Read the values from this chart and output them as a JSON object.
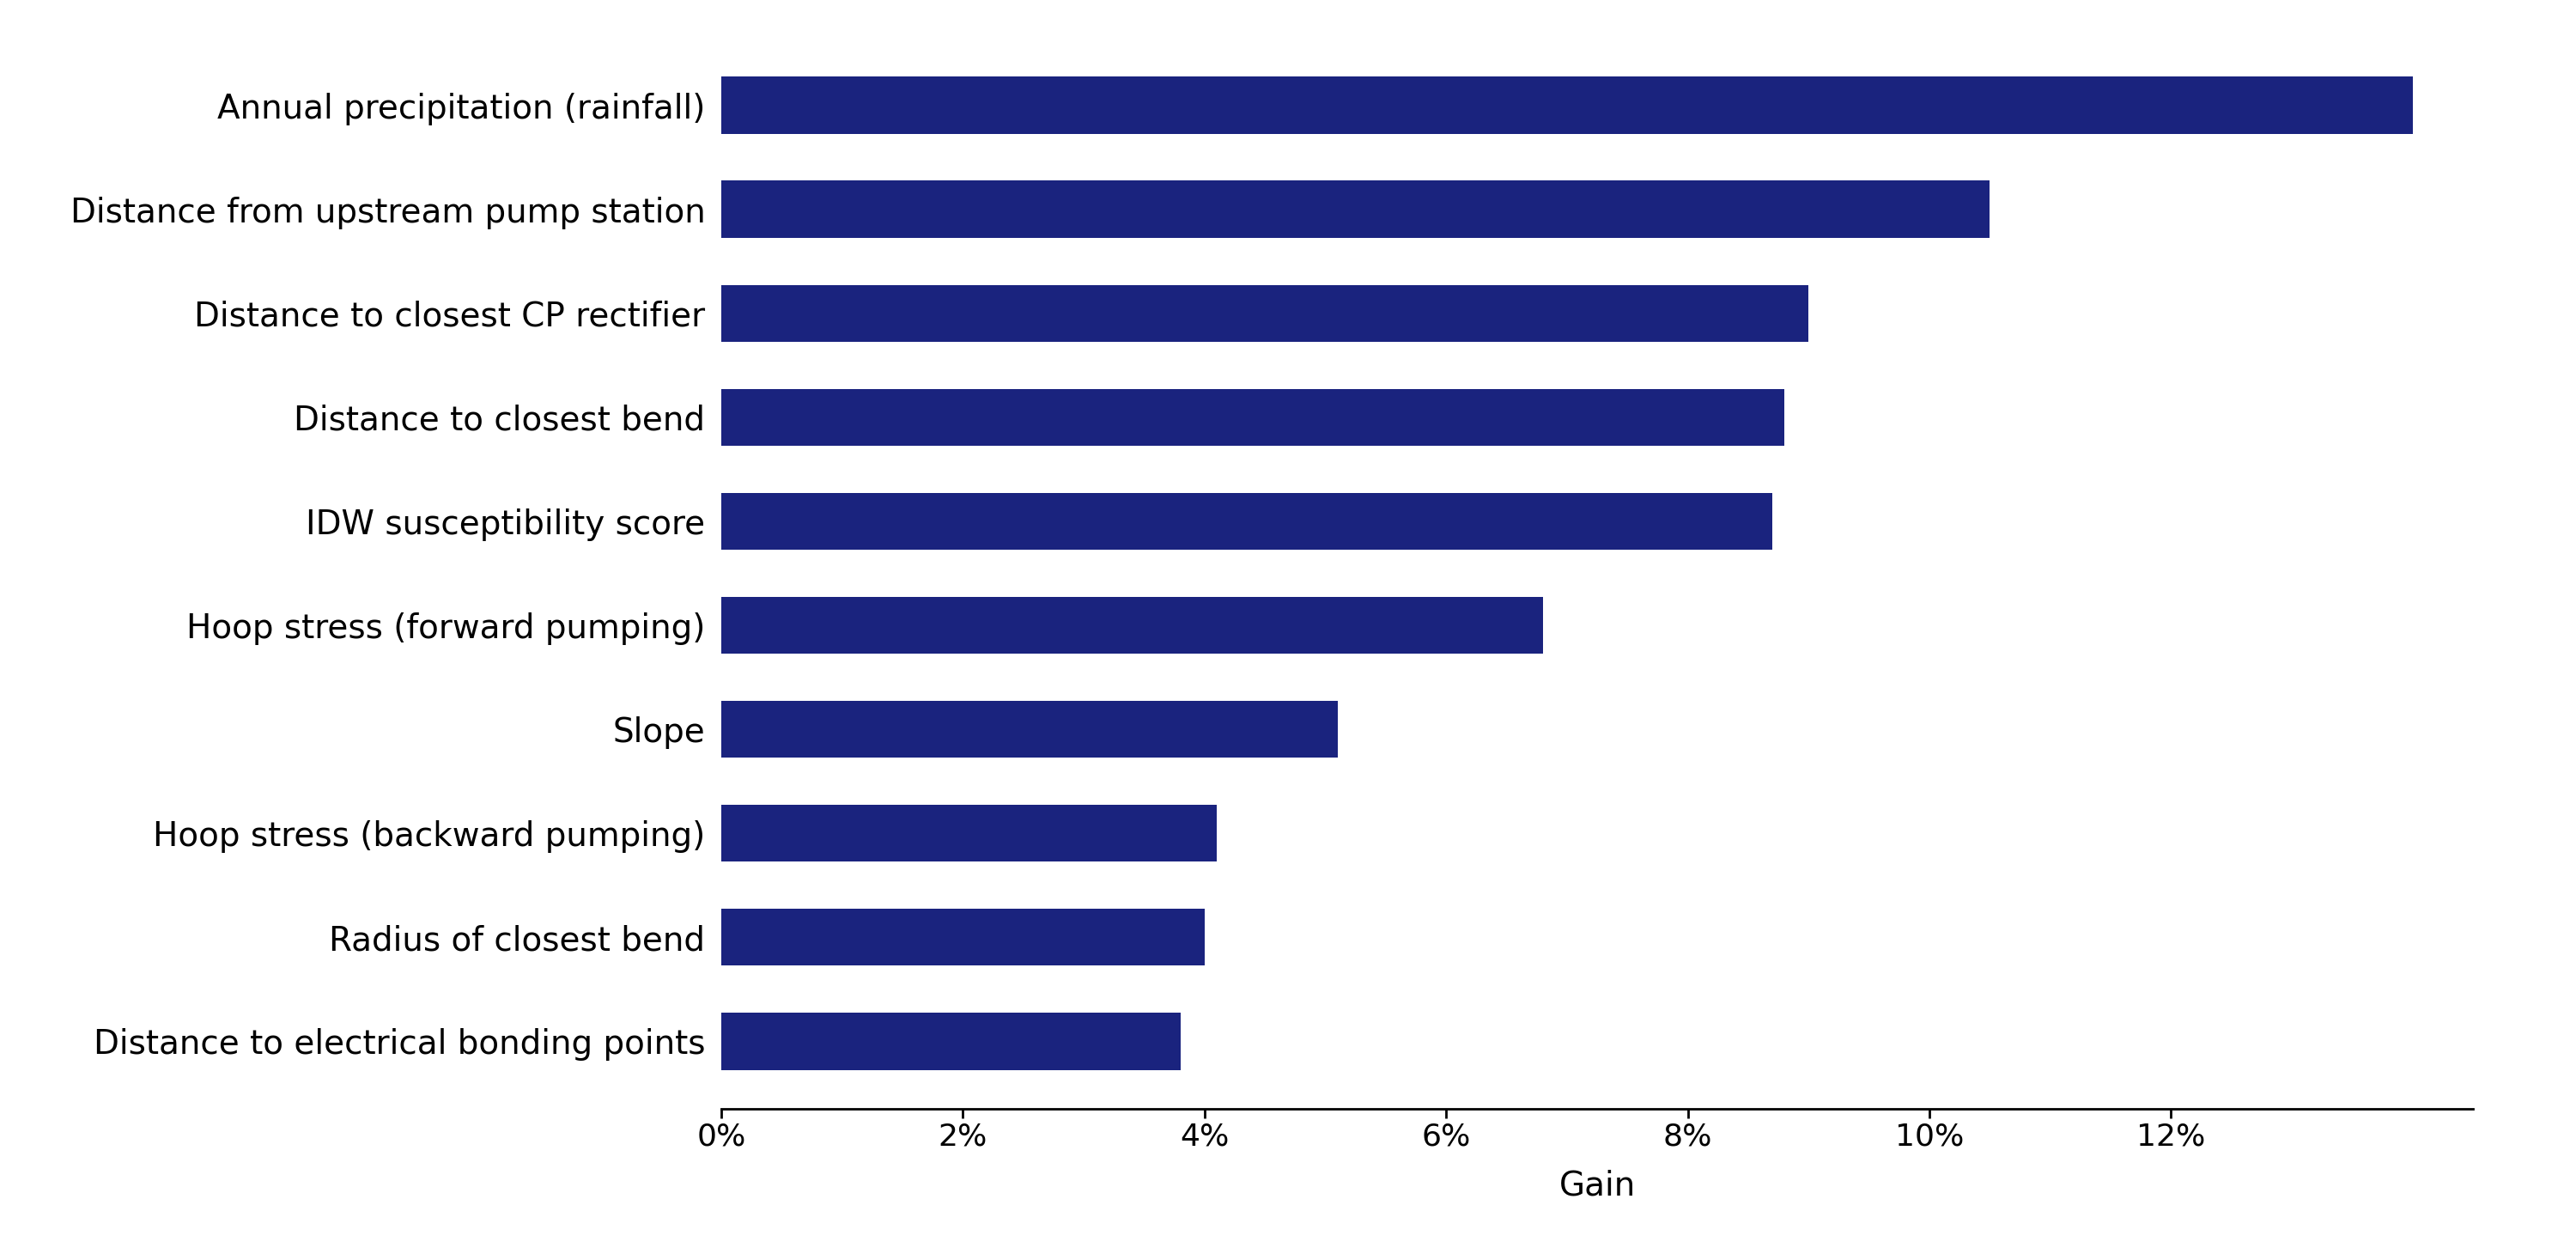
{
  "categories": [
    "Distance to electrical bonding points",
    "Radius of closest bend",
    "Hoop stress (backward pumping)",
    "Slope",
    "Hoop stress (forward pumping)",
    "IDW susceptibility score",
    "Distance to closest bend",
    "Distance to closest CP rectifier",
    "Distance from upstream pump station",
    "Annual precipitation (rainfall)"
  ],
  "values": [
    3.8,
    4.0,
    4.1,
    5.1,
    6.8,
    8.7,
    8.8,
    9.0,
    10.5,
    14.0
  ],
  "bar_color": "#1a237e",
  "xlabel": "Gain",
  "xlim": [
    0,
    14.5
  ],
  "xtick_values": [
    0,
    2,
    4,
    6,
    8,
    10,
    12
  ],
  "xtick_labels": [
    "0%",
    "2%",
    "4%",
    "6%",
    "8%",
    "10%",
    "12%"
  ],
  "background_color": "#ffffff",
  "label_fontsize": 28,
  "tick_fontsize": 26,
  "xlabel_fontsize": 28,
  "bar_height": 0.55
}
